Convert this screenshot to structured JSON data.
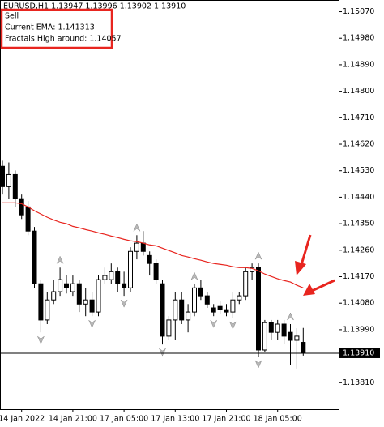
{
  "header": "EURUSD,H1  1.13947 1.13996 1.13902 1.13910",
  "comment": [
    "Sell",
    "Current EMA: 1.141313",
    "Fractals High around: 1.14057"
  ],
  "chart_data": {
    "type": "candlestick",
    "categories": [
      null,
      null,
      null,
      "14 Jan 2022",
      null,
      null,
      null,
      null,
      null,
      null,
      null,
      "14 Jan 21:00",
      null,
      null,
      null,
      null,
      null,
      null,
      null,
      "17 Jan 05:00",
      null,
      null,
      null,
      null,
      null,
      null,
      null,
      "17 Jan 13:00",
      null,
      null,
      null,
      null,
      null,
      null,
      null,
      "17 Jan 21:00",
      null,
      null,
      null,
      null,
      null,
      null,
      null,
      "18 Jan 05:00",
      null,
      null,
      null,
      null
    ],
    "open": [
      1.14545,
      1.14476,
      1.14517,
      1.14435,
      1.14407,
      1.14325,
      1.14146,
      1.14023,
      1.14091,
      1.14119,
      1.14146,
      1.14119,
      1.14146,
      1.14077,
      1.14091,
      1.1405,
      1.1416,
      1.1416,
      1.14187,
      1.14146,
      1.14132,
      1.14256,
      1.14284,
      1.14242,
      1.14215,
      1.14146,
      1.13968,
      1.14023,
      1.14091,
      1.14023,
      1.1405,
      1.14132,
      1.14105,
      1.14064,
      1.14069,
      1.14058,
      1.1405,
      1.14091,
      1.14105,
      1.14187,
      1.14201,
      1.13921,
      1.14014,
      1.13981,
      1.14009,
      1.13981,
      1.13954,
      1.13947
    ],
    "high": [
      1.14564,
      1.14558,
      1.14531,
      1.14449,
      1.14427,
      1.14339,
      1.1416,
      1.14119,
      1.1416,
      1.14201,
      1.14174,
      1.14174,
      1.1416,
      1.14132,
      1.14119,
      1.14174,
      1.14201,
      1.14215,
      1.14201,
      1.14187,
      1.1427,
      1.14311,
      1.14325,
      1.14256,
      1.14229,
      1.1416,
      1.14036,
      1.14119,
      1.14119,
      1.14077,
      1.14146,
      1.1416,
      1.14119,
      1.14077,
      1.14086,
      1.14077,
      1.14119,
      1.14119,
      1.14201,
      1.14215,
      1.14215,
      1.14023,
      1.14023,
      1.14023,
      1.14023,
      1.14009,
      1.13995,
      1.13996
    ],
    "low": [
      1.14449,
      1.14435,
      1.14407,
      1.14366,
      1.14311,
      1.14132,
      1.13981,
      1.14009,
      1.14077,
      1.14105,
      1.14113,
      1.14105,
      1.1405,
      1.14036,
      1.14036,
      1.14036,
      1.14146,
      1.14146,
      1.14119,
      1.14105,
      1.14119,
      1.14229,
      1.14242,
      1.14174,
      1.14146,
      1.1394,
      1.13954,
      1.13954,
      1.14009,
      1.13981,
      1.14036,
      1.14091,
      1.14064,
      1.14036,
      1.14042,
      1.14036,
      1.14031,
      1.14077,
      1.14091,
      1.1416,
      1.13899,
      1.13913,
      1.13954,
      1.13954,
      1.1394,
      1.13871,
      1.13858,
      1.13902
    ],
    "close": [
      1.14476,
      1.14517,
      1.14435,
      1.1438,
      1.14325,
      1.14146,
      1.14023,
      1.14091,
      1.14119,
      1.1416,
      1.14132,
      1.14146,
      1.14077,
      1.14091,
      1.1405,
      1.1416,
      1.14174,
      1.14187,
      1.14146,
      1.14132,
      1.14256,
      1.14284,
      1.14256,
      1.14215,
      1.1416,
      1.13968,
      1.14023,
      1.14091,
      1.14023,
      1.1405,
      1.14132,
      1.14105,
      1.14077,
      1.1405,
      1.14058,
      1.1405,
      1.14091,
      1.14105,
      1.14187,
      1.14201,
      1.13921,
      1.14014,
      1.13981,
      1.14009,
      1.13968,
      1.13954,
      1.13968,
      1.1391
    ],
    "ema": {
      "color": "#e8251f",
      "values": [
        1.14421,
        1.14421,
        1.14421,
        1.14418,
        1.14407,
        1.14394,
        1.14383,
        1.14372,
        1.14363,
        1.14355,
        1.1435,
        1.14341,
        1.14336,
        1.1433,
        1.14325,
        1.14319,
        1.14314,
        1.14308,
        1.14303,
        1.14297,
        1.14292,
        1.14289,
        1.14284,
        1.14278,
        1.14275,
        1.14267,
        1.14259,
        1.14251,
        1.14242,
        1.14237,
        1.14231,
        1.14226,
        1.1422,
        1.14215,
        1.14212,
        1.14209,
        1.14204,
        1.14201,
        1.14201,
        1.14198,
        1.1419,
        1.14179,
        1.14171,
        1.14163,
        1.14157,
        1.14152,
        1.14141,
        1.14132
      ]
    },
    "fractals_up": [
      null,
      null,
      null,
      null,
      null,
      null,
      null,
      null,
      null,
      1.14201,
      null,
      null,
      null,
      null,
      null,
      null,
      null,
      null,
      null,
      null,
      null,
      1.14311,
      null,
      null,
      null,
      null,
      null,
      null,
      null,
      null,
      1.14146,
      null,
      null,
      null,
      null,
      null,
      null,
      null,
      null,
      null,
      1.14215,
      null,
      null,
      null,
      null,
      1.14009,
      null,
      null
    ],
    "fractals_down": [
      null,
      null,
      null,
      null,
      null,
      null,
      1.13981,
      null,
      null,
      null,
      null,
      null,
      null,
      null,
      1.14036,
      null,
      null,
      null,
      null,
      1.14105,
      null,
      null,
      null,
      null,
      null,
      1.1394,
      null,
      null,
      null,
      null,
      null,
      null,
      null,
      1.14036,
      null,
      null,
      1.14031,
      null,
      null,
      null,
      1.13899,
      null,
      null,
      null,
      null,
      null,
      null,
      null
    ],
    "current_price": {
      "value": 1.1391,
      "label": "1.13910"
    },
    "ylim": [
      1.1372,
      1.1511
    ],
    "yticks": [
      {
        "value": 1.1507,
        "label": "1.15070"
      },
      {
        "value": 1.1498,
        "label": "1.14980"
      },
      {
        "value": 1.1489,
        "label": "1.14890"
      },
      {
        "value": 1.148,
        "label": "1.14800"
      },
      {
        "value": 1.1471,
        "label": "1.14710"
      },
      {
        "value": 1.1462,
        "label": "1.14620"
      },
      {
        "value": 1.1453,
        "label": "1.14530"
      },
      {
        "value": 1.1444,
        "label": "1.14440"
      },
      {
        "value": 1.1435,
        "label": "1.14350"
      },
      {
        "value": 1.1426,
        "label": "1.14260"
      },
      {
        "value": 1.1417,
        "label": "1.14170"
      },
      {
        "value": 1.1408,
        "label": "1.14080"
      },
      {
        "value": 1.1399,
        "label": "1.13990"
      },
      {
        "value": 1.1381,
        "label": "1.13810"
      }
    ]
  }
}
